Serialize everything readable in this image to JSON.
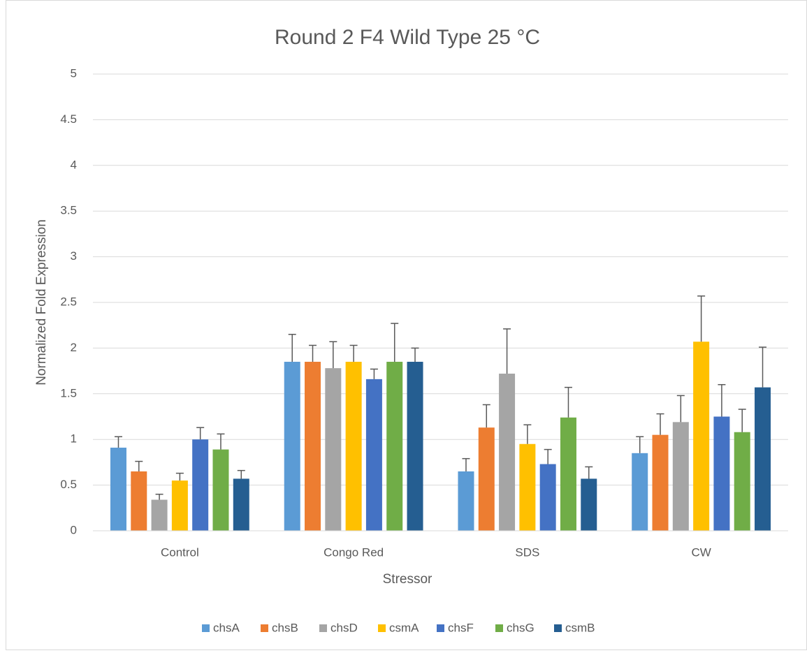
{
  "chart_data": {
    "type": "bar",
    "title": "Round 2 F4 Wild Type 25 °C",
    "x_label": "Stressor",
    "y_label": "Normalized Fold Expression",
    "categories": [
      "Control",
      "Congo Red",
      "SDS",
      "CW"
    ],
    "series": [
      {
        "name": "chsA",
        "color": "#5b9bd5",
        "values": [
          0.91,
          1.85,
          0.65,
          0.85
        ],
        "errors": [
          0.12,
          0.3,
          0.14,
          0.18
        ]
      },
      {
        "name": "chsB",
        "color": "#ed7d31",
        "values": [
          0.65,
          1.85,
          1.13,
          1.05
        ],
        "errors": [
          0.11,
          0.18,
          0.25,
          0.23
        ]
      },
      {
        "name": "chsD",
        "color": "#a5a5a5",
        "values": [
          0.34,
          1.78,
          1.72,
          1.19
        ],
        "errors": [
          0.06,
          0.29,
          0.49,
          0.29
        ]
      },
      {
        "name": "csmA",
        "color": "#ffc000",
        "values": [
          0.55,
          1.85,
          0.95,
          2.07
        ],
        "errors": [
          0.08,
          0.18,
          0.21,
          0.5
        ]
      },
      {
        "name": "chsF",
        "color": "#4472c4",
        "values": [
          1.0,
          1.66,
          0.73,
          1.25
        ],
        "errors": [
          0.13,
          0.11,
          0.16,
          0.35
        ]
      },
      {
        "name": "chsG",
        "color": "#70ad47",
        "values": [
          0.89,
          1.85,
          1.24,
          1.08
        ],
        "errors": [
          0.17,
          0.42,
          0.33,
          0.25
        ]
      },
      {
        "name": "csmB",
        "color": "#255e91",
        "values": [
          0.57,
          1.85,
          0.57,
          1.57
        ],
        "errors": [
          0.09,
          0.15,
          0.13,
          0.44
        ]
      }
    ],
    "ylim": [
      0,
      5
    ],
    "yticks": [
      0,
      0.5,
      1,
      1.5,
      2,
      2.5,
      3,
      3.5,
      4,
      4.5,
      5
    ],
    "grid": true,
    "legend": "bottom"
  }
}
